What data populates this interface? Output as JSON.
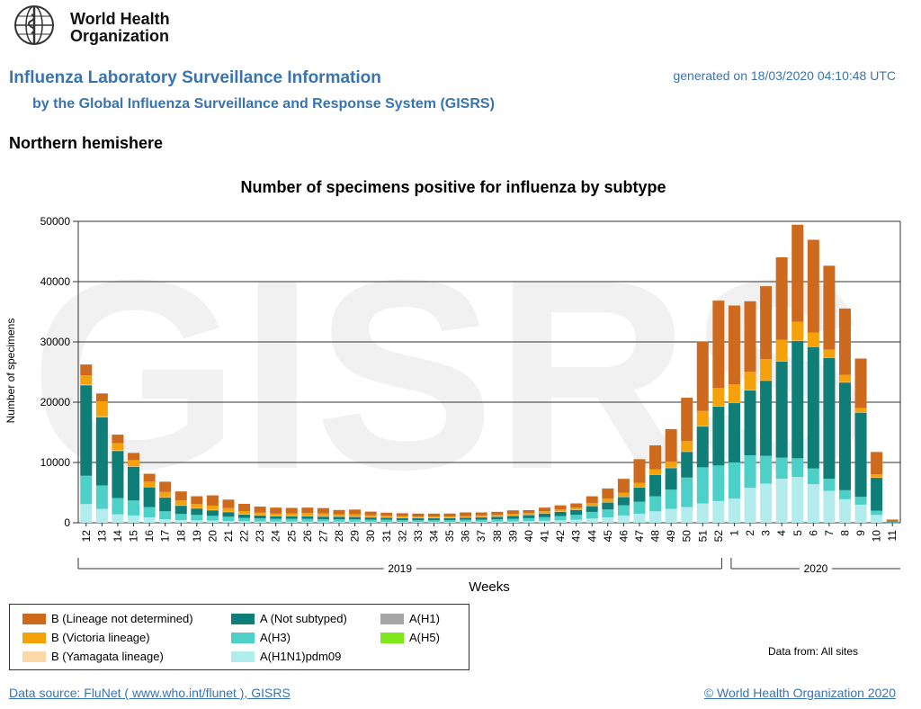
{
  "header": {
    "org_name_line1": "World Health",
    "org_name_line2": "Organization",
    "title": "Influenza Laboratory Surveillance Information",
    "subtitle": "by the Global Influenza Surveillance and Response System (GISRS)",
    "generated": "generated on 18/03/2020 04:10:48 UTC",
    "region": "Northern hemishere"
  },
  "watermark": "GISRS",
  "colors": {
    "B_not_determined": "#cd6a1e",
    "B_victoria": "#f5a20a",
    "B_yamagata": "#fcd9a8",
    "A_not_subtyped": "#0e7e77",
    "A_H3": "#4dd0c8",
    "A_H1N1pdm09": "#b3ecec",
    "A_H1": "#a6a6a6",
    "A_H5": "#7ee81c"
  },
  "chart_data": {
    "type": "bar",
    "stacked": true,
    "title": "Number of specimens positive for influenza by subtype",
    "xlabel": "Weeks",
    "ylabel": "Number of specimens",
    "ylim": [
      0,
      50000
    ],
    "yticks": [
      "0",
      "10000",
      "20000",
      "30000",
      "40000",
      "50000"
    ],
    "year_groups": [
      {
        "label": "2019",
        "first_week_index": 0,
        "last_week_index": 40
      },
      {
        "label": "2020",
        "first_week_index": 41,
        "last_week_index": 51
      }
    ],
    "categories": [
      "12",
      "13",
      "14",
      "15",
      "16",
      "17",
      "18",
      "19",
      "20",
      "21",
      "22",
      "23",
      "24",
      "25",
      "26",
      "27",
      "28",
      "29",
      "30",
      "31",
      "32",
      "33",
      "34",
      "35",
      "36",
      "37",
      "38",
      "39",
      "40",
      "41",
      "42",
      "43",
      "44",
      "45",
      "46",
      "47",
      "48",
      "49",
      "50",
      "51",
      "52",
      "1",
      "2",
      "3",
      "4",
      "5",
      "6",
      "7",
      "8",
      "9",
      "10",
      "11"
    ],
    "series": [
      {
        "name": "A(H1N1)pdm09",
        "color_key": "A_H1N1pdm09",
        "values": [
          3100,
          2300,
          1400,
          1200,
          900,
          600,
          450,
          400,
          350,
          300,
          250,
          220,
          200,
          200,
          200,
          200,
          180,
          180,
          160,
          150,
          140,
          130,
          130,
          140,
          160,
          170,
          190,
          220,
          260,
          320,
          400,
          520,
          700,
          900,
          1200,
          1500,
          1900,
          2300,
          2600,
          3200,
          3600,
          4000,
          5800,
          6500,
          7300,
          7600,
          6400,
          5300,
          3900,
          3000,
          1300,
          50
        ]
      },
      {
        "name": "A(H3)",
        "color_key": "A_H3",
        "values": [
          4700,
          3900,
          2700,
          2500,
          1700,
          1300,
          1000,
          900,
          800,
          700,
          550,
          500,
          450,
          450,
          450,
          400,
          400,
          400,
          350,
          350,
          300,
          300,
          300,
          300,
          350,
          350,
          400,
          450,
          500,
          600,
          700,
          800,
          1100,
          1300,
          1700,
          2000,
          2500,
          3200,
          4900,
          6000,
          5900,
          6000,
          5400,
          4600,
          3500,
          3100,
          2600,
          2000,
          1500,
          1300,
          700,
          30
        ]
      },
      {
        "name": "A(Not subtyped)",
        "color_key": "A_not_subtyped",
        "values": [
          15000,
          11300,
          7800,
          5600,
          3300,
          2300,
          1400,
          1100,
          950,
          800,
          600,
          520,
          470,
          470,
          470,
          450,
          450,
          420,
          400,
          380,
          350,
          350,
          350,
          350,
          370,
          400,
          430,
          500,
          550,
          650,
          750,
          850,
          1000,
          1200,
          1400,
          2400,
          3600,
          3600,
          4300,
          6800,
          9800,
          9900,
          10800,
          12500,
          16000,
          19500,
          20200,
          20100,
          17900,
          14000,
          5500,
          100
        ]
      },
      {
        "name": "A(H1)",
        "color_key": "A_H1",
        "values": [
          100,
          100,
          80,
          60,
          50,
          40,
          30,
          30,
          20,
          20,
          20,
          20,
          20,
          20,
          20,
          20,
          20,
          20,
          20,
          20,
          20,
          20,
          20,
          20,
          20,
          20,
          20,
          20,
          20,
          20,
          20,
          20,
          20,
          20,
          20,
          20,
          20,
          20,
          20,
          20,
          20,
          20,
          20,
          20,
          20,
          20,
          20,
          20,
          20,
          20,
          20,
          0
        ]
      },
      {
        "name": "A(H5)",
        "color_key": "A_H5",
        "values": [
          0,
          0,
          0,
          0,
          0,
          0,
          0,
          0,
          0,
          0,
          0,
          0,
          0,
          0,
          0,
          0,
          0,
          0,
          0,
          0,
          0,
          0,
          0,
          0,
          0,
          0,
          0,
          0,
          0,
          0,
          0,
          0,
          0,
          0,
          0,
          0,
          0,
          0,
          0,
          0,
          0,
          0,
          0,
          0,
          0,
          0,
          0,
          0,
          0,
          0,
          0,
          0
        ]
      },
      {
        "name": "B(Yamagata lineage)",
        "color_key": "B_yamagata",
        "values": [
          50,
          50,
          40,
          30,
          30,
          20,
          20,
          20,
          20,
          20,
          20,
          20,
          20,
          20,
          20,
          20,
          20,
          20,
          20,
          20,
          20,
          20,
          20,
          20,
          20,
          20,
          20,
          20,
          20,
          20,
          20,
          20,
          20,
          20,
          20,
          20,
          20,
          20,
          20,
          20,
          20,
          20,
          20,
          20,
          20,
          20,
          20,
          20,
          20,
          20,
          20,
          0
        ]
      },
      {
        "name": "B(Victoria lineage)",
        "color_key": "B_victoria",
        "values": [
          1500,
          2500,
          1200,
          1000,
          850,
          850,
          800,
          650,
          700,
          600,
          500,
          400,
          350,
          400,
          450,
          450,
          350,
          350,
          300,
          250,
          250,
          200,
          200,
          200,
          200,
          250,
          250,
          250,
          250,
          300,
          300,
          300,
          450,
          550,
          650,
          700,
          800,
          1000,
          1700,
          2500,
          3000,
          3000,
          3000,
          3500,
          3500,
          3100,
          2300,
          1300,
          1200,
          700,
          500,
          0
        ]
      },
      {
        "name": "B(Lineage not determined)",
        "color_key": "B_not_determined",
        "values": [
          1800,
          1300,
          1400,
          1200,
          1300,
          1700,
          1500,
          1300,
          1700,
          1400,
          1200,
          1000,
          1000,
          900,
          900,
          900,
          700,
          800,
          600,
          500,
          500,
          500,
          500,
          500,
          600,
          500,
          500,
          600,
          500,
          600,
          700,
          700,
          1100,
          1700,
          2300,
          3900,
          4000,
          5400,
          7200,
          11500,
          14500,
          13100,
          11700,
          12100,
          13700,
          16100,
          15400,
          13900,
          11000,
          8200,
          3700,
          350
        ]
      }
    ],
    "legend": {
      "position": "bottom-left",
      "entries": [
        {
          "label": "B (Lineage not determined)",
          "color_key": "B_not_determined"
        },
        {
          "label": "B (Victoria lineage)",
          "color_key": "B_victoria"
        },
        {
          "label": "B (Yamagata lineage)",
          "color_key": "B_yamagata"
        },
        {
          "label": "A (Not subtyped)",
          "color_key": "A_not_subtyped"
        },
        {
          "label": "A(H3)",
          "color_key": "A_H3"
        },
        {
          "label": "A(H1N1)pdm09",
          "color_key": "A_H1N1pdm09"
        },
        {
          "label": "A(H1)",
          "color_key": "A_H1"
        },
        {
          "label": "A(H5)",
          "color_key": "A_H5"
        }
      ]
    },
    "grid": true
  },
  "notes": {
    "data_from": "Data from: All sites"
  },
  "footer": {
    "source": "Data source: FluNet ( www.who.int/flunet ), GISRS",
    "copyright": "© World Health Organization 2020"
  }
}
